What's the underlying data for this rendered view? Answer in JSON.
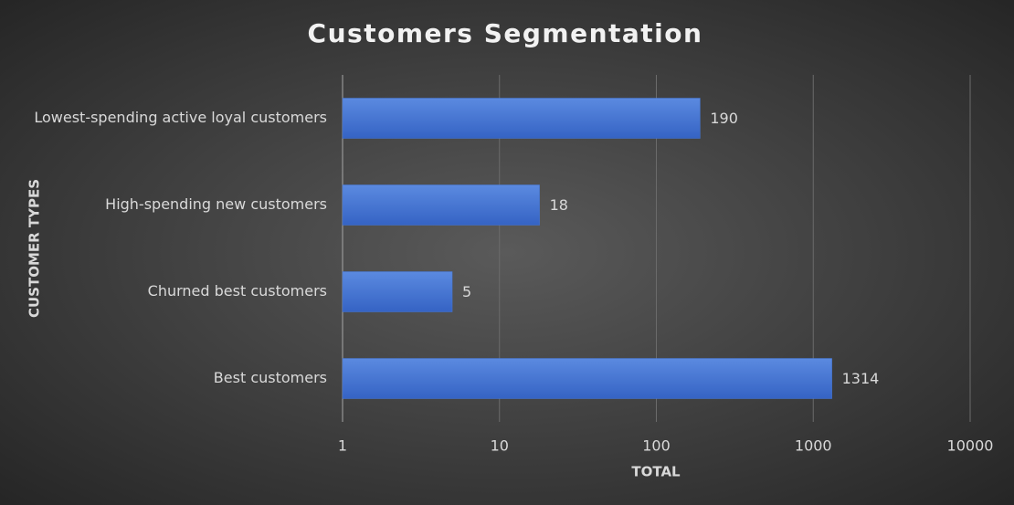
{
  "chart_data": {
    "type": "bar",
    "orientation": "horizontal",
    "title": "Customers Segmentation",
    "x_label": "TOTAL",
    "y_label": "CUSTOMER TYPES",
    "categories": [
      "Lowest-spending active loyal customers",
      "High-spending new customers",
      "Churned best customers",
      "Best customers"
    ],
    "values": [
      190,
      18,
      5,
      1314
    ],
    "color": "#4477d6",
    "xlim": [
      1,
      10000
    ],
    "xticks": [
      1,
      10,
      100,
      1000,
      10000
    ],
    "xscale": "log",
    "grid": true,
    "data_labels": true
  }
}
